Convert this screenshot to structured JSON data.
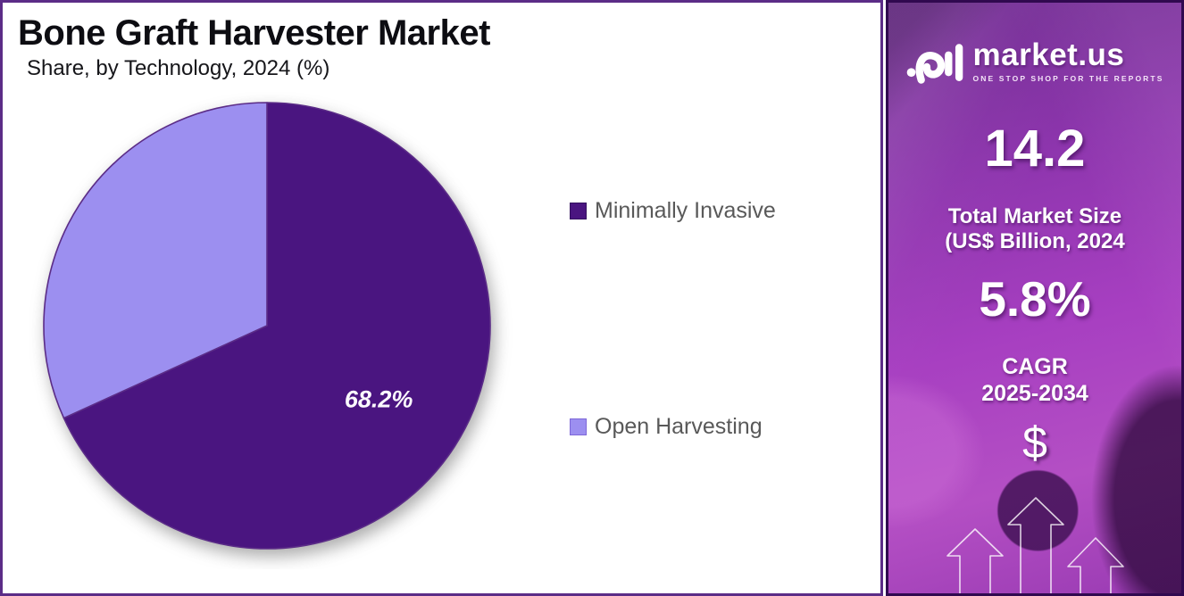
{
  "header": {
    "title": "Bone Graft Harvester Market",
    "subtitle": "Share, by Technology, 2024 (%)"
  },
  "chart_data": {
    "type": "pie",
    "title": "Bone Graft Harvester Market",
    "subtitle": "Share, by Technology, 2024 (%)",
    "labels": [
      "Minimally Invasive",
      "Open Harvesting"
    ],
    "values": [
      68.2,
      31.8
    ],
    "colors": [
      "#4a1580",
      "#9c8ff0"
    ],
    "data_labels": [
      "68.2%",
      ""
    ],
    "start_angle_deg": 0,
    "direction": "clockwise",
    "legend_position": "right"
  },
  "legend": {
    "items": [
      {
        "label": "Minimally Invasive",
        "color": "#4a1580"
      },
      {
        "label": "Open Harvesting",
        "color": "#9c8ff0"
      }
    ]
  },
  "sidebar": {
    "logo": {
      "brand": "market.us",
      "tagline": "ONE STOP SHOP FOR THE REPORTS",
      "icon": "market-us-wave-bars-icon"
    },
    "stats": [
      {
        "value": "14.2",
        "label": "Total Market Size\n(US$ Billion, 2024"
      },
      {
        "value": "5.8%",
        "label": "CAGR\n2025-2034"
      }
    ],
    "dollar_symbol": "$"
  },
  "colors": {
    "slice_dark": "#4a1580",
    "slice_light": "#9c8ff0",
    "panel_border": "#5b2c87",
    "sidebar_border": "#30094f",
    "legend_text": "#595959"
  }
}
